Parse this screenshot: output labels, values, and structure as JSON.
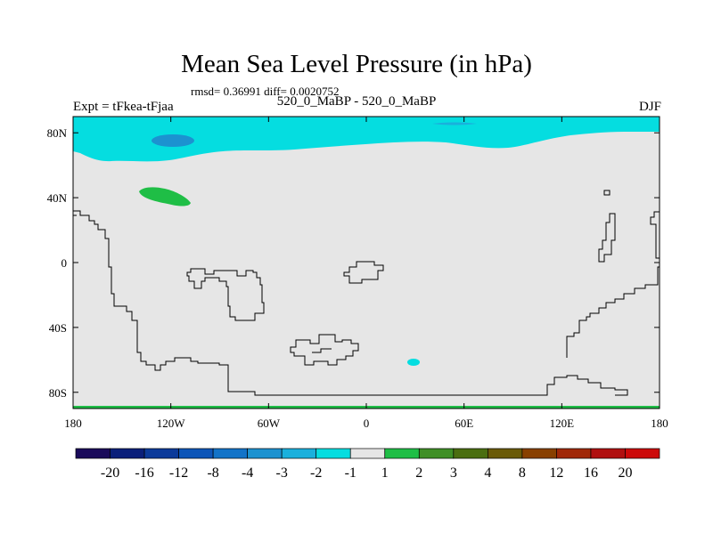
{
  "chart_data": {
    "type": "heatmap",
    "title": "Mean Sea Level Pressure (in hPa)",
    "stats_text": "rmsd= 0.36991 diff= 0.0020752",
    "left_label": "Expt = tFkea-tFjaa",
    "center_label": "520_0_MaBP - 520_0_MaBP",
    "right_label": "DJF",
    "x_ticks": [
      "180",
      "120W",
      "60W",
      "0",
      "60E",
      "120E",
      "180"
    ],
    "y_ticks": [
      "80N",
      "40N",
      "0",
      "40S",
      "80S"
    ],
    "xlim": [
      -180,
      180
    ],
    "ylim": [
      -90,
      90
    ],
    "colorbar": {
      "labels": [
        "-20",
        "-16",
        "-12",
        "-8",
        "-4",
        "-3",
        "-2",
        "-1",
        "1",
        "2",
        "3",
        "4",
        "8",
        "12",
        "16",
        "20"
      ],
      "colors": [
        "#1a0a5a",
        "#0a1f7a",
        "#0b3a9a",
        "#0d55b8",
        "#1273c8",
        "#1c92d0",
        "#1ab0dc",
        "#05dde0",
        "#e6e6e6",
        "#1fbe46",
        "#3f8f26",
        "#4a6e10",
        "#6a5a08",
        "#884000",
        "#a02808",
        "#b01010",
        "#cc0a0a"
      ]
    },
    "regions": [
      {
        "label": "-1",
        "description_value": "-1 to -2 hPa band",
        "lat_range": [
          63,
          90
        ],
        "lon_range": [
          -180,
          180
        ]
      },
      {
        "label": "-2",
        "lat_range": [
          73,
          77
        ],
        "lon_range": [
          -140,
          -115
        ]
      },
      {
        "label": "2",
        "lat_range": [
          36,
          44
        ],
        "lon_range": [
          -142,
          -108
        ]
      },
      {
        "label": "-1",
        "lat_range": [
          -63,
          -59
        ],
        "lon_range": [
          26,
          35
        ]
      },
      {
        "label": "2",
        "lat_range": [
          -90,
          -88
        ],
        "lon_range": [
          -180,
          180
        ]
      }
    ]
  }
}
